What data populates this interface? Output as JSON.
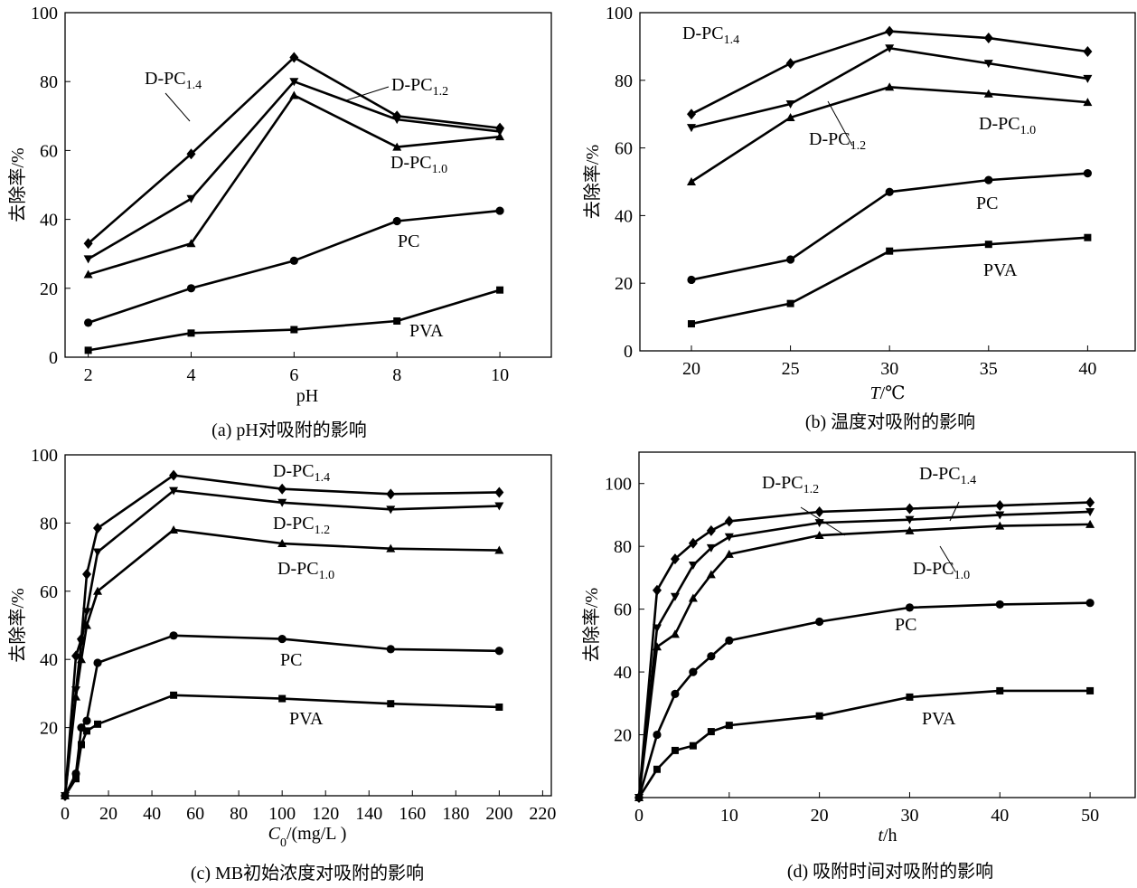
{
  "chart_data": [
    {
      "type": "line",
      "caption": "(a) pH对吸附的影响",
      "xlabel": [
        {
          "text": "pH"
        }
      ],
      "ylabel": "去除率/%",
      "xlim": [
        1.55,
        11
      ],
      "ylim": [
        0,
        100
      ],
      "xticks": [
        2,
        4,
        6,
        8,
        10
      ],
      "yticks": [
        0,
        20,
        40,
        60,
        80,
        100
      ],
      "x": [
        2,
        4,
        6,
        8,
        10
      ],
      "series": [
        {
          "name": "D-PC1.4",
          "marker": "diamond",
          "values": [
            33,
            59,
            87,
            70,
            66.5
          ]
        },
        {
          "name": "D-PC1.2",
          "marker": "triangle-down",
          "values": [
            28.5,
            46,
            80,
            69,
            65.5
          ]
        },
        {
          "name": "D-PC1.0",
          "marker": "triangle-up",
          "values": [
            24,
            33,
            76,
            61,
            64
          ]
        },
        {
          "name": "PC",
          "marker": "circle",
          "values": [
            10,
            20,
            28,
            39.5,
            42.5
          ]
        },
        {
          "name": "PVA",
          "marker": "square",
          "values": [
            2,
            7,
            8,
            10.5,
            19.5
          ]
        }
      ],
      "annotations": [
        {
          "base": "D-PC",
          "sub": "1.4"
        },
        {
          "base": "D-PC",
          "sub": "1.2"
        },
        {
          "base": "D-PC",
          "sub": "1.0"
        },
        {
          "base": "PC",
          "sub": ""
        },
        {
          "base": "PVA",
          "sub": ""
        }
      ],
      "grid": false
    },
    {
      "type": "line",
      "caption": "(b) 温度对吸附的影响",
      "xlabel": [
        {
          "text": "T",
          "style": "italic"
        },
        {
          "text": "/℃"
        }
      ],
      "ylabel": "去除率/%",
      "xlim": [
        17.4,
        42.4
      ],
      "ylim": [
        0,
        100
      ],
      "xticks": [
        20,
        25,
        30,
        35,
        40
      ],
      "yticks": [
        0,
        20,
        40,
        60,
        80,
        100
      ],
      "x": [
        20,
        25,
        30,
        35,
        40
      ],
      "series": [
        {
          "name": "D-PC1.4",
          "marker": "diamond",
          "values": [
            70,
            85,
            94.5,
            92.5,
            88.5
          ]
        },
        {
          "name": "D-PC1.2",
          "marker": "triangle-down",
          "values": [
            66,
            73,
            89.5,
            85,
            80.5
          ]
        },
        {
          "name": "D-PC1.0",
          "marker": "triangle-up",
          "values": [
            50,
            69,
            78,
            76,
            73.5
          ]
        },
        {
          "name": "PC",
          "marker": "circle",
          "values": [
            21,
            27,
            47,
            50.5,
            52.5
          ]
        },
        {
          "name": "PVA",
          "marker": "square",
          "values": [
            8,
            14,
            29.5,
            31.5,
            33.5
          ]
        }
      ],
      "annotations": [
        {
          "base": "D-PC",
          "sub": "1.4"
        },
        {
          "base": "D-PC",
          "sub": "1.2"
        },
        {
          "base": "D-PC",
          "sub": "1.0"
        },
        {
          "base": "PC",
          "sub": ""
        },
        {
          "base": "PVA",
          "sub": ""
        }
      ],
      "grid": false
    },
    {
      "type": "line",
      "caption": "(c) MB初始浓度对吸附的影响",
      "xlabel": [
        {
          "text": "C",
          "style": "italic"
        },
        {
          "text": "0",
          "style": "sub"
        },
        {
          "text": "/(mg/L )"
        }
      ],
      "ylabel": "去除率/%",
      "xlim": [
        0,
        224
      ],
      "ylim": [
        0,
        100
      ],
      "xticks": [
        0,
        20,
        40,
        60,
        80,
        100,
        120,
        140,
        160,
        180,
        200,
        220
      ],
      "yticks": [
        20,
        40,
        60,
        80,
        100
      ],
      "x": [
        0,
        5,
        7.5,
        10,
        15,
        50,
        100,
        150,
        200
      ],
      "series": [
        {
          "name": "D-PC1.4",
          "marker": "diamond",
          "values": [
            0,
            41,
            46,
            65,
            78.5,
            94,
            90,
            88.5,
            89
          ]
        },
        {
          "name": "D-PC1.2",
          "marker": "triangle-down",
          "values": [
            0,
            31,
            45,
            54,
            71.5,
            89.5,
            86,
            84,
            85
          ]
        },
        {
          "name": "D-PC1.0",
          "marker": "triangle-up",
          "values": [
            0,
            29,
            40,
            50,
            60,
            78,
            74,
            72.5,
            72
          ]
        },
        {
          "name": "PC",
          "marker": "circle",
          "values": [
            0,
            6.5,
            20,
            22,
            39,
            47,
            46,
            43,
            42.5
          ]
        },
        {
          "name": "PVA",
          "marker": "square",
          "values": [
            0,
            5,
            15,
            19,
            21,
            29.5,
            28.5,
            27,
            26
          ]
        }
      ],
      "annotations": [
        {
          "base": "D-PC",
          "sub": "1.4"
        },
        {
          "base": "D-PC",
          "sub": "1.2"
        },
        {
          "base": "D-PC",
          "sub": "1.0"
        },
        {
          "base": "PC",
          "sub": ""
        },
        {
          "base": "PVA",
          "sub": ""
        }
      ],
      "grid": false
    },
    {
      "type": "line",
      "caption": "(d) 吸附时间对吸附的影响",
      "xlabel": [
        {
          "text": "t",
          "style": "italic"
        },
        {
          "text": "/h"
        }
      ],
      "ylabel": "去除率/%",
      "xlim": [
        0,
        55
      ],
      "ylim": [
        0,
        110
      ],
      "xticks": [
        0,
        10,
        20,
        30,
        40,
        50
      ],
      "yticks": [
        20,
        40,
        60,
        80,
        100
      ],
      "x": [
        0,
        2,
        4,
        6,
        8,
        10,
        20,
        30,
        40,
        50
      ],
      "series": [
        {
          "name": "D-PC1.4",
          "marker": "diamond",
          "values": [
            0,
            66,
            76,
            81,
            85,
            88,
            91,
            92,
            93,
            94
          ]
        },
        {
          "name": "D-PC1.2",
          "marker": "triangle-down",
          "values": [
            0,
            54,
            64,
            74,
            79.5,
            83,
            87.5,
            88.5,
            90,
            91
          ]
        },
        {
          "name": "D-PC1.0",
          "marker": "triangle-up",
          "values": [
            0,
            48,
            52,
            63.5,
            71,
            77.5,
            83.5,
            85,
            86.5,
            87
          ]
        },
        {
          "name": "PC",
          "marker": "circle",
          "values": [
            0,
            20,
            33,
            40,
            45,
            50,
            56,
            60.5,
            61.5,
            62
          ]
        },
        {
          "name": "PVA",
          "marker": "square",
          "values": [
            0,
            9,
            15,
            16.5,
            21,
            23,
            26,
            32,
            34,
            34
          ]
        }
      ],
      "annotations": [
        {
          "base": "D-PC",
          "sub": "1.4"
        },
        {
          "base": "D-PC",
          "sub": "1.2"
        },
        {
          "base": "D-PC",
          "sub": "1.0"
        },
        {
          "base": "PC",
          "sub": ""
        },
        {
          "base": "PVA",
          "sub": ""
        }
      ],
      "grid": false
    }
  ]
}
